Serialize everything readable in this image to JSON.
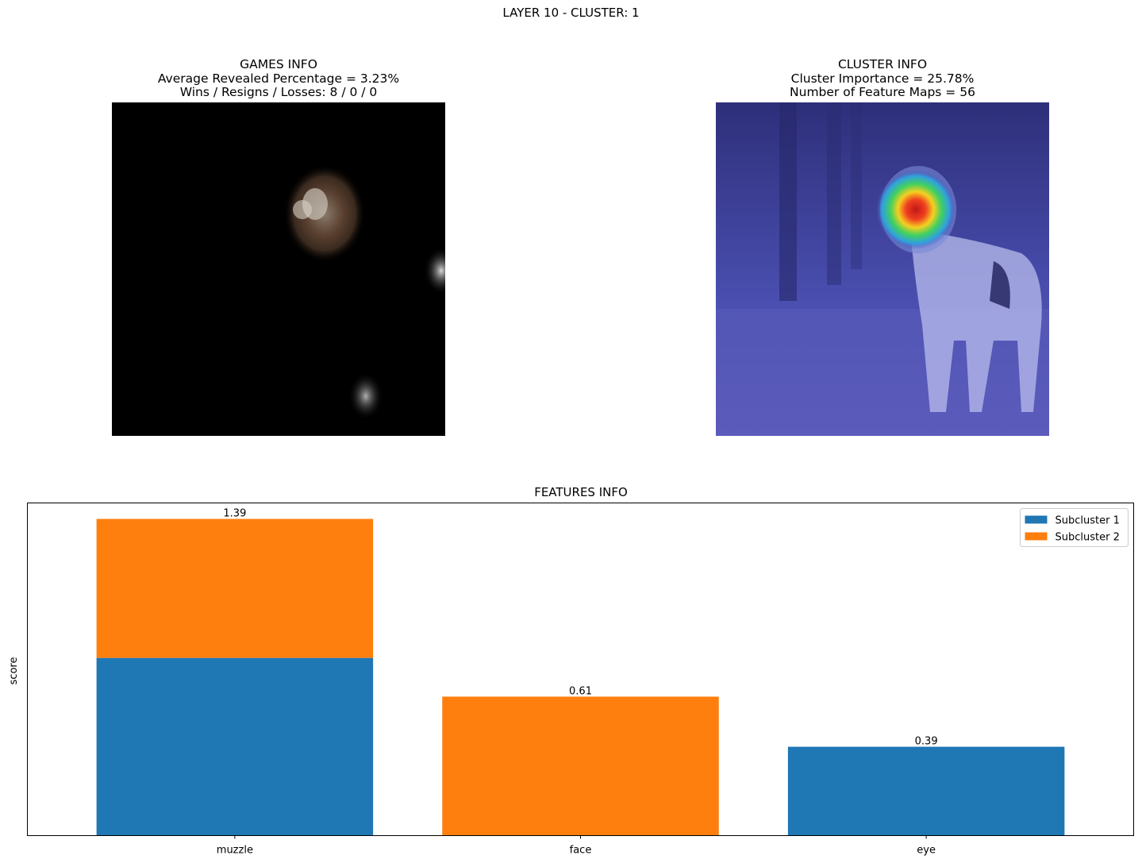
{
  "suptitle": "LAYER 10 - CLUSTER: 1",
  "games_info": {
    "title": "GAMES INFO",
    "line1": "Average Revealed Percentage = 3.23%",
    "line2": "Wins / Resigns / Losses: 8 / 0 / 0"
  },
  "cluster_info": {
    "title": "CLUSTER INFO",
    "line1": "Cluster Importance = 25.78%",
    "line2": "Number of Feature Maps = 56"
  },
  "chart_data": {
    "type": "bar",
    "stacked": true,
    "title": "FEATURES INFO",
    "xlabel": "",
    "ylabel": "score",
    "categories": [
      "muzzle",
      "face",
      "eye"
    ],
    "series": [
      {
        "name": "Subcluster 1",
        "color": "#1f77b4",
        "values": [
          0.78,
          0,
          0.39
        ]
      },
      {
        "name": "Subcluster 2",
        "color": "#ff7f0e",
        "values": [
          0.61,
          0.61,
          0
        ]
      }
    ],
    "totals": [
      "1.39",
      "0.61",
      "0.39"
    ],
    "ylim": [
      0,
      1.46
    ],
    "yticks_visible": false,
    "grid": false,
    "legend_position": "top-right"
  }
}
